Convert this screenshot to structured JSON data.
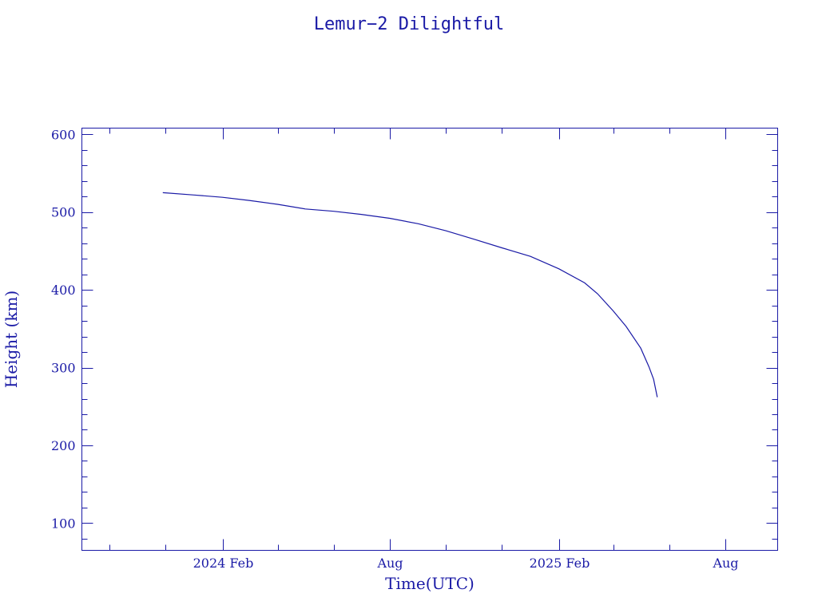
{
  "chart_data": {
    "type": "line",
    "title": "Lemur−2 Dilightful",
    "xlabel": "Time(UTC)",
    "ylabel": "Height (km)",
    "xlim": [
      "2023-09-01",
      "2025-09-27"
    ],
    "ylim": [
      65,
      608
    ],
    "x_ticks": [
      {
        "label": "2024 Feb",
        "date": "2024-02-01"
      },
      {
        "label": "Aug",
        "date": "2024-08-01"
      },
      {
        "label": "2025 Feb",
        "date": "2025-02-01"
      },
      {
        "label": "Aug",
        "date": "2025-08-01"
      }
    ],
    "y_ticks": [
      100,
      200,
      300,
      400,
      500,
      600
    ],
    "grid": false,
    "legend": "none",
    "color": "#1a1aa6",
    "series": [
      {
        "x": [
          "2023-11-28",
          "2024-01-01",
          "2024-02-01",
          "2024-03-01",
          "2024-04-01",
          "2024-05-01",
          "2024-06-01",
          "2024-07-01",
          "2024-08-01",
          "2024-09-01",
          "2024-10-01",
          "2024-11-01",
          "2024-12-01",
          "2025-01-01",
          "2025-02-01",
          "2025-03-01",
          "2025-03-15",
          "2025-04-01",
          "2025-04-15",
          "2025-05-01",
          "2025-05-10",
          "2025-05-15",
          "2025-05-19"
        ],
        "y": [
          525,
          522,
          519,
          515,
          510,
          504,
          501,
          497,
          492,
          485,
          476,
          465,
          454,
          443,
          427,
          409,
          395,
          373,
          353,
          325,
          301,
          285,
          262
        ]
      }
    ]
  }
}
